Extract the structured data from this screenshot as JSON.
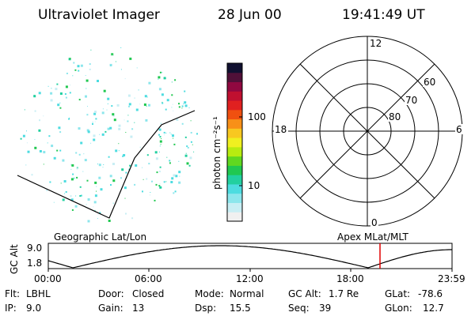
{
  "header": {
    "title": "Ultraviolet Imager",
    "date": "28 Jun 00",
    "time": "19:41:49 UT"
  },
  "colorbar": {
    "unit_label": "photon cm⁻²s⁻¹",
    "ticks": [
      "100",
      "10"
    ],
    "colors": [
      "#f0f0f0",
      "#c8eef4",
      "#8ce6ec",
      "#4ddce0",
      "#22d0a0",
      "#20c850",
      "#60d820",
      "#b8ec10",
      "#f0f020",
      "#f8c820",
      "#f89018",
      "#f05010",
      "#e02020",
      "#c01030",
      "#900840",
      "#501038",
      "#101030"
    ]
  },
  "polar_plot": {
    "mlt_labels": {
      "top": "12",
      "left": "18",
      "right": "6",
      "bottom": "0"
    },
    "lat_labels": [
      "60",
      "70",
      "80"
    ]
  },
  "strip": {
    "left_caption": "Geographic Lat/Lon",
    "right_caption": "Apex MLat/MLT",
    "ylabel": "GC Alt",
    "yticks": [
      "9.0",
      "1.8"
    ],
    "xticks": [
      "00:00",
      "06:00",
      "12:00",
      "18:00",
      "23:59"
    ],
    "marker_color": "#e00000"
  },
  "info": {
    "row1": [
      {
        "key": "Flt:",
        "value": "LBHL"
      },
      {
        "key": "Door:",
        "value": "Closed"
      },
      {
        "key": "Mode:",
        "value": "Normal"
      },
      {
        "key": "GC Alt:",
        "value": "1.7 Re"
      },
      {
        "key": "GLat:",
        "value": "-78.6"
      }
    ],
    "row2": [
      {
        "key": "IP:",
        "value": "9.0"
      },
      {
        "key": "Gain:",
        "value": "13"
      },
      {
        "key": "Dsp:",
        "value": "15.5"
      },
      {
        "key": "Seq:",
        "value": "39"
      },
      {
        "key": "GLon:",
        "value": "12.7"
      }
    ]
  }
}
